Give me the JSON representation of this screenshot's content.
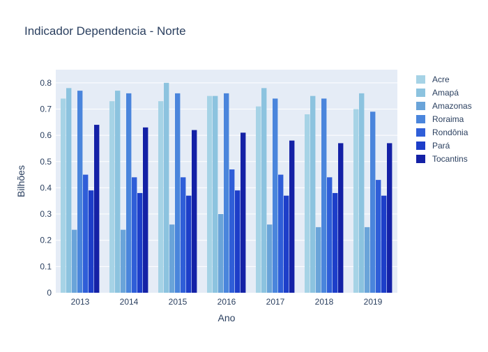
{
  "chart_data": {
    "type": "bar",
    "title": "Indicador Dependencia - Norte",
    "xlabel": "Ano",
    "ylabel": "Bilhões",
    "ylim": [
      0,
      0.85
    ],
    "yticks": [
      "0",
      "0.1",
      "0.2",
      "0.3",
      "0.4",
      "0.5",
      "0.6",
      "0.7",
      "0.8"
    ],
    "categories": [
      "2013",
      "2014",
      "2015",
      "2016",
      "2017",
      "2018",
      "2019"
    ],
    "grid": true,
    "legend_position": "right",
    "series": [
      {
        "name": "Acre",
        "color": "#a6d3e6",
        "values": [
          0.74,
          0.73,
          0.73,
          0.75,
          0.71,
          0.68,
          0.7
        ]
      },
      {
        "name": "Amapá",
        "color": "#8cc3df",
        "values": [
          0.78,
          0.77,
          0.8,
          0.75,
          0.78,
          0.75,
          0.76
        ]
      },
      {
        "name": "Amazonas",
        "color": "#6aa4d9",
        "values": [
          0.24,
          0.24,
          0.26,
          0.3,
          0.26,
          0.25,
          0.25
        ]
      },
      {
        "name": "Roraima",
        "color": "#4a85dc",
        "values": [
          0.77,
          0.76,
          0.76,
          0.76,
          0.74,
          0.74,
          0.69
        ]
      },
      {
        "name": "Rondônia",
        "color": "#2f5ed8",
        "values": [
          0.45,
          0.44,
          0.44,
          0.47,
          0.45,
          0.44,
          0.43
        ]
      },
      {
        "name": "Pará",
        "color": "#1d3ec9",
        "values": [
          0.39,
          0.38,
          0.37,
          0.39,
          0.37,
          0.38,
          0.37
        ]
      },
      {
        "name": "Tocantins",
        "color": "#1421a6",
        "values": [
          0.64,
          0.63,
          0.62,
          0.61,
          0.58,
          0.57,
          0.57
        ]
      }
    ]
  }
}
